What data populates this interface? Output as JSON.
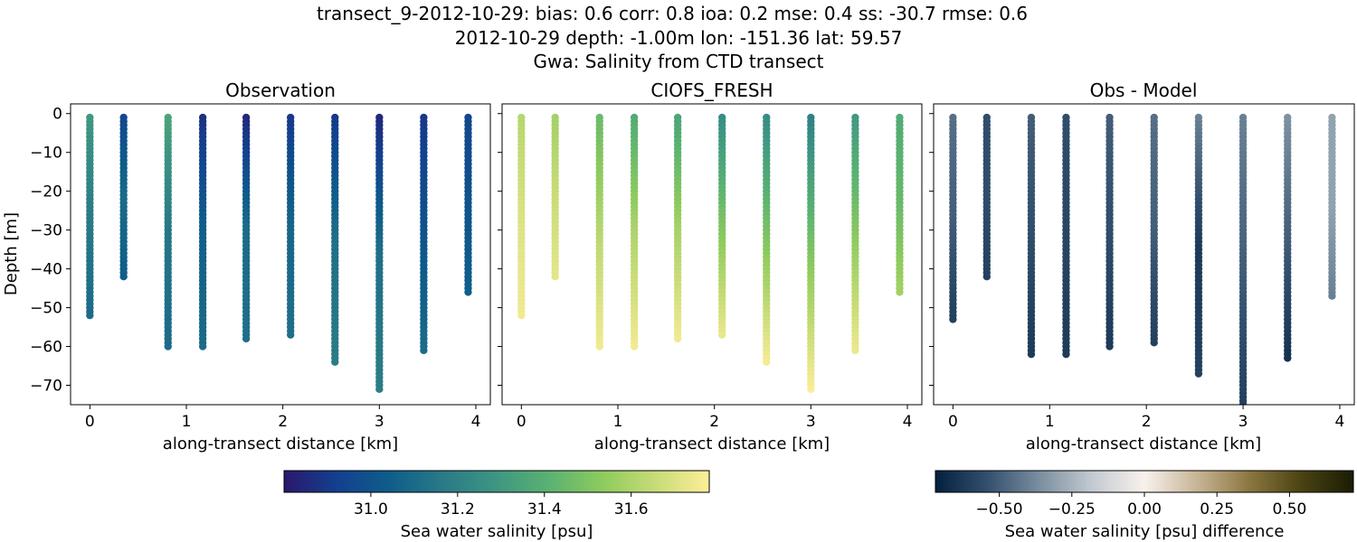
{
  "title": {
    "line1": "transect_9-2012-10-29: bias: 0.6  corr: 0.8  ioa: 0.2  mse: 0.4  ss: -30.7  rmse: 0.6",
    "line2": "2012-10-29 depth: -1.00m lon: -151.36 lat: 59.57",
    "line3": "Gwa: Salinity from CTD transect"
  },
  "chart_data": [
    {
      "type": "scatter",
      "title": "Observation",
      "xlabel": "along-transect distance [km]",
      "ylabel": "Depth [m]",
      "xlim": [
        -0.2,
        4.15
      ],
      "ylim": [
        -75,
        2.5
      ],
      "xticks": [
        0,
        1,
        2,
        3,
        4
      ],
      "yticks": [
        0,
        -10,
        -20,
        -30,
        -40,
        -50,
        -60,
        -70
      ],
      "colorbar": "salinity",
      "profiles": [
        {
          "x": 0.0,
          "max_depth": 52,
          "top": 31.3,
          "mid": 31.17,
          "bottom": 31.1
        },
        {
          "x": 0.35,
          "max_depth": 42,
          "top": 30.95,
          "mid": 31.1,
          "bottom": 31.05
        },
        {
          "x": 0.81,
          "max_depth": 60,
          "top": 31.35,
          "mid": 31.15,
          "bottom": 31.1
        },
        {
          "x": 1.17,
          "max_depth": 60,
          "top": 30.88,
          "mid": 31.05,
          "bottom": 31.1
        },
        {
          "x": 1.62,
          "max_depth": 58,
          "top": 30.85,
          "mid": 31.1,
          "bottom": 31.12
        },
        {
          "x": 2.08,
          "max_depth": 57,
          "top": 30.9,
          "mid": 31.08,
          "bottom": 31.12
        },
        {
          "x": 2.54,
          "max_depth": 64,
          "top": 30.9,
          "mid": 31.12,
          "bottom": 31.17
        },
        {
          "x": 3.0,
          "max_depth": 71,
          "top": 30.85,
          "mid": 31.12,
          "bottom": 31.18
        },
        {
          "x": 3.46,
          "max_depth": 61,
          "top": 30.9,
          "mid": 31.0,
          "bottom": 31.1
        },
        {
          "x": 3.92,
          "max_depth": 46,
          "top": 30.95,
          "mid": 31.0,
          "bottom": 31.05
        }
      ]
    },
    {
      "type": "scatter",
      "title": "CIOFS_FRESH",
      "xlabel": "along-transect distance [km]",
      "xlim": [
        -0.2,
        4.15
      ],
      "ylim": [
        -75,
        2.5
      ],
      "xticks": [
        0,
        1,
        2,
        3,
        4
      ],
      "colorbar": "salinity",
      "profiles": [
        {
          "x": 0.0,
          "max_depth": 52,
          "top": 31.62,
          "mid": 31.7,
          "bottom": 31.75
        },
        {
          "x": 0.35,
          "max_depth": 42,
          "top": 31.58,
          "mid": 31.66,
          "bottom": 31.72
        },
        {
          "x": 0.81,
          "max_depth": 60,
          "top": 31.45,
          "mid": 31.62,
          "bottom": 31.75
        },
        {
          "x": 1.17,
          "max_depth": 60,
          "top": 31.38,
          "mid": 31.6,
          "bottom": 31.75
        },
        {
          "x": 1.62,
          "max_depth": 58,
          "top": 31.35,
          "mid": 31.58,
          "bottom": 31.75
        },
        {
          "x": 2.08,
          "max_depth": 57,
          "top": 31.25,
          "mid": 31.5,
          "bottom": 31.73
        },
        {
          "x": 2.54,
          "max_depth": 64,
          "top": 31.25,
          "mid": 31.5,
          "bottom": 31.76
        },
        {
          "x": 3.0,
          "max_depth": 71,
          "top": 31.2,
          "mid": 31.5,
          "bottom": 31.77
        },
        {
          "x": 3.46,
          "max_depth": 61,
          "top": 31.3,
          "mid": 31.52,
          "bottom": 31.74
        },
        {
          "x": 3.92,
          "max_depth": 46,
          "top": 31.38,
          "mid": 31.45,
          "bottom": 31.58
        }
      ]
    },
    {
      "type": "scatter",
      "title": "Obs - Model",
      "xlabel": "along-transect distance [km]",
      "xlim": [
        -0.2,
        4.15
      ],
      "ylim": [
        -75,
        2.5
      ],
      "xticks": [
        0,
        1,
        2,
        3,
        4
      ],
      "colorbar": "difference",
      "profiles": [
        {
          "x": 0.0,
          "max_depth": 53,
          "top": -0.45,
          "mid": -0.5,
          "bottom": -0.6
        },
        {
          "x": 0.35,
          "max_depth": 42,
          "top": -0.55,
          "mid": -0.55,
          "bottom": -0.6
        },
        {
          "x": 0.81,
          "max_depth": 62,
          "top": -0.5,
          "mid": -0.55,
          "bottom": -0.62
        },
        {
          "x": 1.17,
          "max_depth": 62,
          "top": -0.55,
          "mid": -0.58,
          "bottom": -0.62
        },
        {
          "x": 1.62,
          "max_depth": 60,
          "top": -0.5,
          "mid": -0.55,
          "bottom": -0.62
        },
        {
          "x": 2.08,
          "max_depth": 59,
          "top": -0.45,
          "mid": -0.5,
          "bottom": -0.6
        },
        {
          "x": 2.54,
          "max_depth": 67,
          "top": -0.4,
          "mid": -0.62,
          "bottom": -0.6
        },
        {
          "x": 3.0,
          "max_depth": 75,
          "top": -0.4,
          "mid": -0.5,
          "bottom": -0.6
        },
        {
          "x": 3.46,
          "max_depth": 63,
          "top": -0.35,
          "mid": -0.5,
          "bottom": -0.65
        },
        {
          "x": 3.92,
          "max_depth": 47,
          "top": -0.3,
          "mid": -0.3,
          "bottom": -0.4
        }
      ]
    }
  ],
  "colorbars": {
    "salinity": {
      "label": "Sea water salinity [psu]",
      "range": [
        30.8,
        31.78
      ],
      "ticks": [
        31.0,
        31.2,
        31.4,
        31.6
      ],
      "tick_labels": [
        "31.0",
        "31.2",
        "31.4",
        "31.6"
      ],
      "colormap": "haline",
      "stops": [
        "#2a186c",
        "#13408f",
        "#0e5e8a",
        "#2a7a87",
        "#3e9682",
        "#5bb271",
        "#8ecb5e",
        "#c8dc78",
        "#fdee99"
      ]
    },
    "difference": {
      "label": "Sea water salinity [psu] difference",
      "range": [
        -0.72,
        0.72
      ],
      "ticks": [
        -0.5,
        -0.25,
        0,
        0.25,
        0.5
      ],
      "tick_labels": [
        "−0.50",
        "−0.25",
        "0.00",
        "0.25",
        "0.50"
      ],
      "colormap": "diff",
      "stops": [
        "#03203f",
        "#33506e",
        "#7a8fa0",
        "#c3cad1",
        "#f8f1ec",
        "#c8b596",
        "#8c7740",
        "#4a4312",
        "#1a1c05"
      ]
    }
  }
}
